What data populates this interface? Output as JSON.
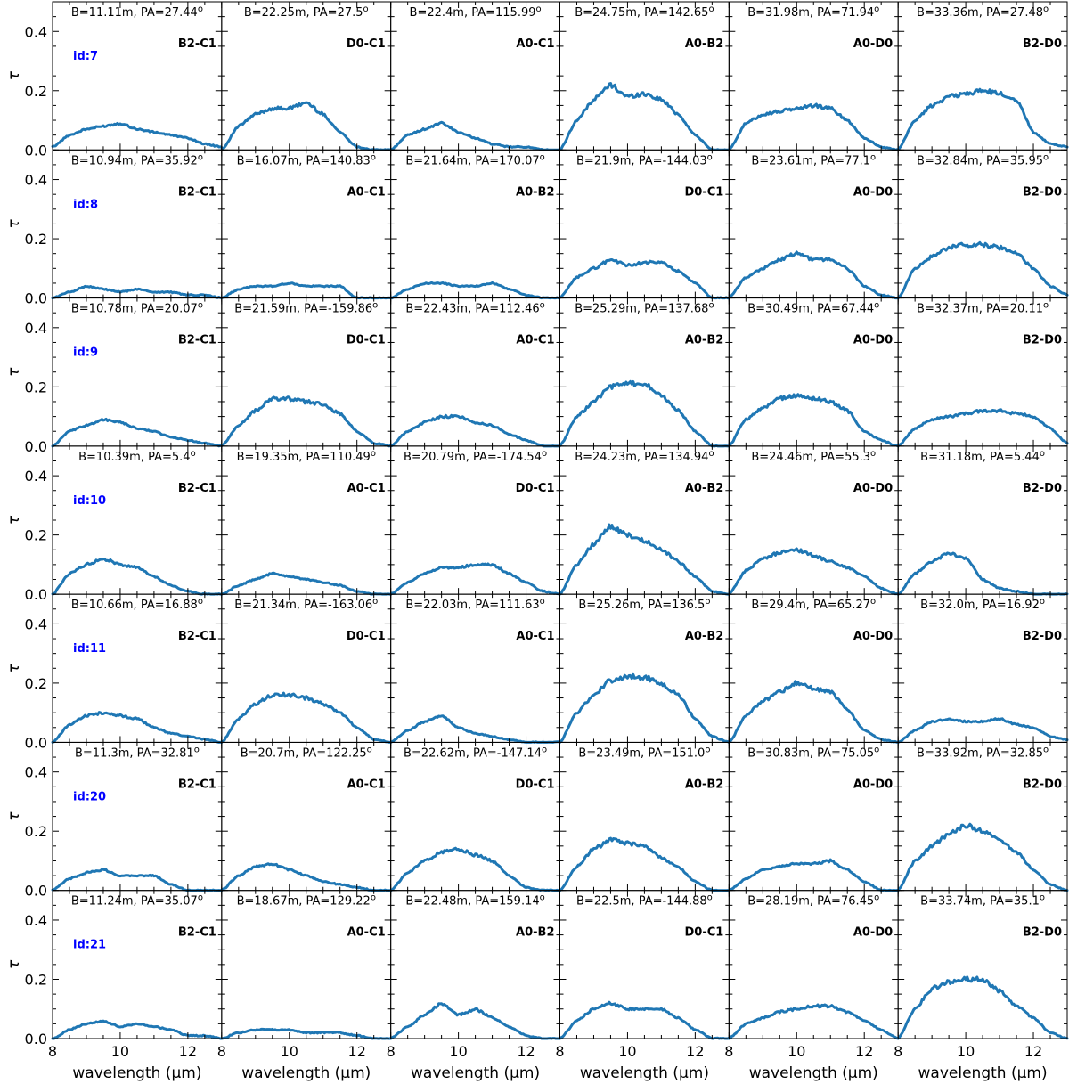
{
  "chart_data": {
    "type": "line",
    "layout": "grid of 7 rows by 6 columns, shared axes",
    "xlabel": "wavelength (μm)",
    "ylabel": "τ",
    "xlim": [
      8,
      13
    ],
    "ylim": [
      0,
      0.5
    ],
    "xticks": [
      8,
      10,
      12
    ],
    "yticks": [
      0.0,
      0.2,
      0.4
    ],
    "x": [
      8.0,
      8.5,
      9.0,
      9.5,
      10.0,
      10.5,
      11.0,
      11.5,
      12.0,
      12.5,
      13.0
    ],
    "rows": [
      {
        "id": "id:7",
        "panels": [
          {
            "title": "B=11.11m, PA=27.44",
            "pair": "B2-C1",
            "values": [
              0.01,
              0.05,
              0.07,
              0.08,
              0.09,
              0.07,
              0.06,
              0.05,
              0.04,
              0.02,
              0.01
            ]
          },
          {
            "title": "B=22.25m, PA=27.5",
            "pair": "D0-C1",
            "values": [
              0.0,
              0.08,
              0.12,
              0.14,
              0.14,
              0.16,
              0.12,
              0.06,
              0.01,
              0.0,
              0.0
            ]
          },
          {
            "title": "B=22.4m, PA=115.99",
            "pair": "A0-C1",
            "values": [
              0.0,
              0.05,
              0.07,
              0.09,
              0.06,
              0.04,
              0.02,
              0.01,
              0.01,
              0.0,
              0.0
            ]
          },
          {
            "title": "B=24.75m, PA=142.65",
            "pair": "A0-B2",
            "values": [
              0.0,
              0.1,
              0.17,
              0.22,
              0.18,
              0.19,
              0.17,
              0.12,
              0.05,
              0.0,
              0.0
            ]
          },
          {
            "title": "B=31.98m, PA=71.94",
            "pair": "A0-D0",
            "values": [
              0.0,
              0.09,
              0.12,
              0.13,
              0.14,
              0.15,
              0.14,
              0.1,
              0.04,
              0.01,
              0.0
            ]
          },
          {
            "title": "B=33.36m, PA=27.48",
            "pair": "B2-D0",
            "values": [
              0.0,
              0.1,
              0.15,
              0.18,
              0.19,
              0.2,
              0.19,
              0.17,
              0.06,
              0.02,
              0.01
            ]
          }
        ]
      },
      {
        "id": "id:8",
        "panels": [
          {
            "title": "B=10.94m, PA=35.92",
            "pair": "B2-C1",
            "values": [
              0.0,
              0.02,
              0.04,
              0.03,
              0.02,
              0.03,
              0.02,
              0.02,
              0.01,
              0.01,
              0.0
            ]
          },
          {
            "title": "B=16.07m, PA=140.83",
            "pair": "A0-C1",
            "values": [
              0.0,
              0.03,
              0.04,
              0.04,
              0.05,
              0.04,
              0.04,
              0.04,
              0.0,
              0.0,
              0.0
            ]
          },
          {
            "title": "B=21.64m, PA=170.07",
            "pair": "A0-B2",
            "values": [
              0.0,
              0.03,
              0.05,
              0.05,
              0.04,
              0.04,
              0.05,
              0.03,
              0.01,
              0.0,
              0.0
            ]
          },
          {
            "title": "B=21.9m, PA=-144.03",
            "pair": "D0-C1",
            "values": [
              0.0,
              0.07,
              0.1,
              0.13,
              0.11,
              0.12,
              0.12,
              0.09,
              0.05,
              0.0,
              0.0
            ]
          },
          {
            "title": "B=23.61m, PA=77.1",
            "pair": "A0-D0",
            "values": [
              0.0,
              0.07,
              0.1,
              0.13,
              0.15,
              0.13,
              0.13,
              0.1,
              0.04,
              0.01,
              0.0
            ]
          },
          {
            "title": "B=32.84m, PA=35.95",
            "pair": "B2-D0",
            "values": [
              0.0,
              0.1,
              0.14,
              0.17,
              0.18,
              0.18,
              0.17,
              0.15,
              0.1,
              0.04,
              0.01
            ]
          }
        ]
      },
      {
        "id": "id:9",
        "panels": [
          {
            "title": "B=10.78m, PA=20.07",
            "pair": "B2-C1",
            "values": [
              0.0,
              0.05,
              0.07,
              0.09,
              0.08,
              0.06,
              0.05,
              0.03,
              0.02,
              0.01,
              0.0
            ]
          },
          {
            "title": "B=21.59m, PA=-159.86",
            "pair": "D0-C1",
            "values": [
              0.0,
              0.07,
              0.12,
              0.16,
              0.16,
              0.15,
              0.14,
              0.11,
              0.05,
              0.01,
              0.0
            ]
          },
          {
            "title": "B=22.43m, PA=112.46",
            "pair": "A0-C1",
            "values": [
              0.0,
              0.05,
              0.08,
              0.1,
              0.1,
              0.08,
              0.07,
              0.04,
              0.02,
              0.0,
              0.0
            ]
          },
          {
            "title": "B=25.29m, PA=137.68",
            "pair": "A0-B2",
            "values": [
              0.0,
              0.1,
              0.15,
              0.2,
              0.21,
              0.21,
              0.17,
              0.12,
              0.05,
              0.0,
              0.0
            ]
          },
          {
            "title": "B=30.49m, PA=67.44",
            "pair": "A0-D0",
            "values": [
              0.0,
              0.09,
              0.13,
              0.16,
              0.17,
              0.16,
              0.15,
              0.12,
              0.05,
              0.02,
              0.0
            ]
          },
          {
            "title": "B=32.37m, PA=20.11",
            "pair": "B2-D0",
            "values": [
              0.0,
              0.06,
              0.09,
              0.1,
              0.11,
              0.12,
              0.12,
              0.11,
              0.1,
              0.06,
              0.01
            ]
          }
        ]
      },
      {
        "id": "id:10",
        "panels": [
          {
            "title": "B=10.39m, PA=5.4",
            "pair": "B2-C1",
            "values": [
              0.0,
              0.07,
              0.1,
              0.12,
              0.1,
              0.09,
              0.06,
              0.03,
              0.01,
              0.0,
              0.0
            ]
          },
          {
            "title": "B=19.35m, PA=110.49",
            "pair": "A0-C1",
            "values": [
              0.0,
              0.03,
              0.05,
              0.07,
              0.06,
              0.05,
              0.04,
              0.03,
              0.01,
              0.0,
              0.0
            ]
          },
          {
            "title": "B=20.79m, PA=-174.54",
            "pair": "D0-C1",
            "values": [
              0.0,
              0.04,
              0.07,
              0.09,
              0.09,
              0.1,
              0.1,
              0.07,
              0.04,
              0.01,
              0.0
            ]
          },
          {
            "title": "B=24.23m, PA=134.94",
            "pair": "A0-B2",
            "values": [
              0.0,
              0.1,
              0.17,
              0.23,
              0.2,
              0.18,
              0.15,
              0.11,
              0.06,
              0.01,
              0.0
            ]
          },
          {
            "title": "B=24.46m, PA=55.3",
            "pair": "A0-D0",
            "values": [
              0.0,
              0.08,
              0.12,
              0.14,
              0.15,
              0.13,
              0.11,
              0.09,
              0.06,
              0.02,
              0.0
            ]
          },
          {
            "title": "B=31.18m, PA=5.44",
            "pair": "B2-D0",
            "values": [
              0.0,
              0.07,
              0.11,
              0.14,
              0.12,
              0.05,
              0.02,
              0.01,
              0.0,
              0.0,
              0.0
            ]
          }
        ]
      },
      {
        "id": "id:11",
        "panels": [
          {
            "title": "B=10.66m, PA=16.88",
            "pair": "B2-C1",
            "values": [
              0.0,
              0.06,
              0.09,
              0.1,
              0.09,
              0.08,
              0.05,
              0.03,
              0.02,
              0.01,
              0.0
            ]
          },
          {
            "title": "B=21.34m, PA=-163.06",
            "pair": "D0-C1",
            "values": [
              0.0,
              0.08,
              0.13,
              0.16,
              0.16,
              0.15,
              0.13,
              0.1,
              0.05,
              0.01,
              0.0
            ]
          },
          {
            "title": "B=22.03m, PA=111.63",
            "pair": "A0-C1",
            "values": [
              0.0,
              0.04,
              0.07,
              0.09,
              0.05,
              0.03,
              0.02,
              0.01,
              0.0,
              0.0,
              0.0
            ]
          },
          {
            "title": "B=25.26m, PA=136.5",
            "pair": "A0-B2",
            "values": [
              0.0,
              0.1,
              0.16,
              0.21,
              0.22,
              0.22,
              0.2,
              0.16,
              0.08,
              0.02,
              0.0
            ]
          },
          {
            "title": "B=29.4m, PA=65.27",
            "pair": "A0-D0",
            "values": [
              0.0,
              0.09,
              0.14,
              0.17,
              0.2,
              0.18,
              0.17,
              0.11,
              0.04,
              0.01,
              0.0
            ]
          },
          {
            "title": "B=32.0m, PA=16.92",
            "pair": "B2-D0",
            "values": [
              0.0,
              0.04,
              0.07,
              0.08,
              0.07,
              0.07,
              0.08,
              0.06,
              0.05,
              0.02,
              0.01
            ]
          }
        ]
      },
      {
        "id": "id:20",
        "panels": [
          {
            "title": "B=11.3m, PA=32.81",
            "pair": "B2-C1",
            "values": [
              0.0,
              0.04,
              0.06,
              0.07,
              0.05,
              0.05,
              0.05,
              0.02,
              0.0,
              0.0,
              0.0
            ]
          },
          {
            "title": "B=20.7m, PA=122.25",
            "pair": "A0-C1",
            "values": [
              0.0,
              0.05,
              0.08,
              0.09,
              0.07,
              0.05,
              0.03,
              0.02,
              0.01,
              0.0,
              0.0
            ]
          },
          {
            "title": "B=22.62m, PA=-147.14",
            "pair": "D0-C1",
            "values": [
              0.0,
              0.06,
              0.1,
              0.13,
              0.14,
              0.12,
              0.1,
              0.05,
              0.01,
              0.0,
              0.0
            ]
          },
          {
            "title": "B=23.49m, PA=151.0",
            "pair": "A0-B2",
            "values": [
              0.0,
              0.08,
              0.14,
              0.17,
              0.16,
              0.15,
              0.11,
              0.08,
              0.03,
              0.0,
              0.0
            ]
          },
          {
            "title": "B=30.83m, PA=75.05",
            "pair": "A0-D0",
            "values": [
              0.0,
              0.04,
              0.07,
              0.08,
              0.09,
              0.09,
              0.1,
              0.07,
              0.03,
              0.0,
              0.0
            ]
          },
          {
            "title": "B=33.92m, PA=32.85",
            "pair": "B2-D0",
            "values": [
              0.0,
              0.1,
              0.15,
              0.19,
              0.22,
              0.2,
              0.17,
              0.13,
              0.07,
              0.02,
              0.0
            ]
          }
        ]
      },
      {
        "id": "id:21",
        "panels": [
          {
            "title": "B=11.24m, PA=35.07",
            "pair": "B2-C1",
            "values": [
              0.0,
              0.03,
              0.05,
              0.06,
              0.04,
              0.05,
              0.04,
              0.03,
              0.01,
              0.01,
              0.0
            ]
          },
          {
            "title": "B=18.67m, PA=129.22",
            "pair": "A0-C1",
            "values": [
              0.0,
              0.02,
              0.03,
              0.03,
              0.03,
              0.02,
              0.02,
              0.02,
              0.01,
              0.0,
              0.0
            ]
          },
          {
            "title": "B=22.48m, PA=159.14",
            "pair": "A0-B2",
            "values": [
              0.0,
              0.04,
              0.08,
              0.12,
              0.08,
              0.1,
              0.07,
              0.04,
              0.01,
              0.0,
              0.0
            ]
          },
          {
            "title": "B=22.5m, PA=-144.88",
            "pair": "D0-C1",
            "values": [
              0.0,
              0.06,
              0.1,
              0.12,
              0.1,
              0.1,
              0.1,
              0.07,
              0.03,
              0.0,
              0.0
            ]
          },
          {
            "title": "B=28.19m, PA=76.45",
            "pair": "A0-D0",
            "values": [
              0.0,
              0.05,
              0.07,
              0.09,
              0.1,
              0.11,
              0.11,
              0.09,
              0.06,
              0.03,
              0.0
            ]
          },
          {
            "title": "B=33.74m, PA=35.1",
            "pair": "B2-D0",
            "values": [
              0.0,
              0.1,
              0.17,
              0.19,
              0.2,
              0.2,
              0.16,
              0.11,
              0.07,
              0.02,
              0.0
            ]
          }
        ]
      }
    ],
    "series_color": "#1f77b4",
    "id_label_color": "#0000ff",
    "grid": false,
    "title_degree_marker": "o"
  }
}
